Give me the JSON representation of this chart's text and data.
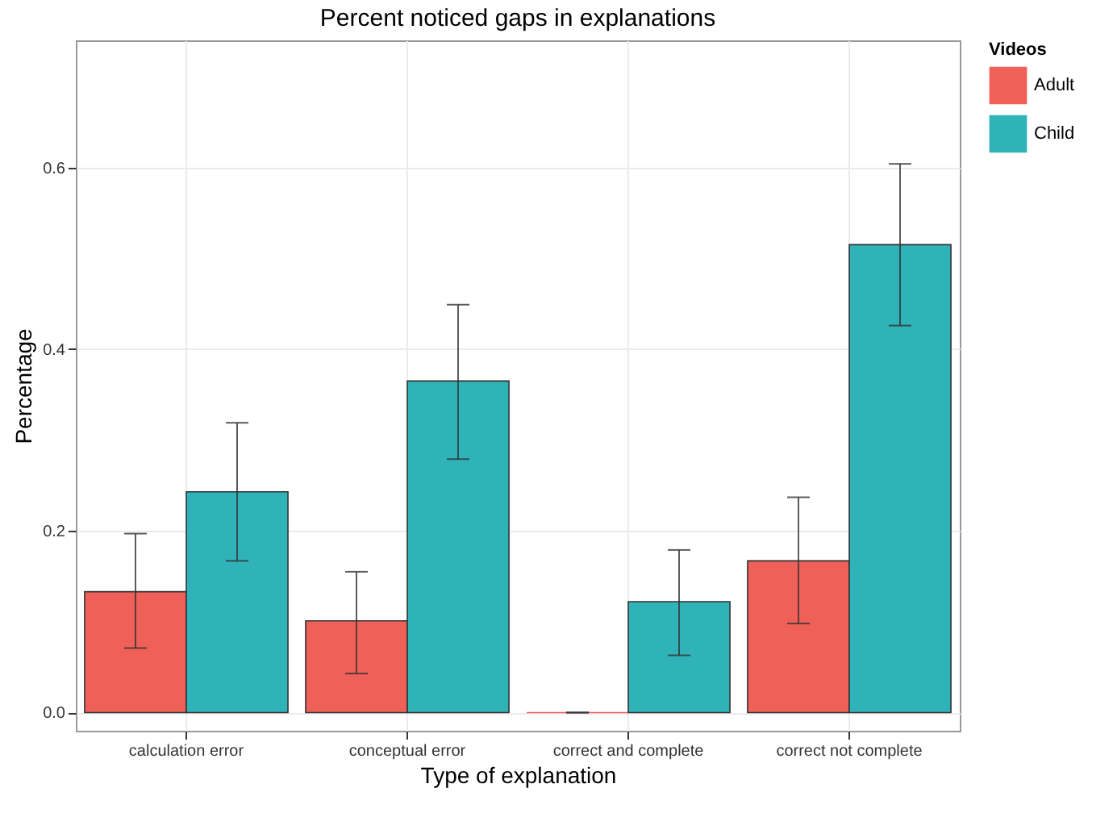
{
  "chart_data": {
    "type": "bar",
    "title": "Percent noticed gaps in explanations",
    "xlabel": "Type of explanation",
    "ylabel": "Percentage",
    "legend_title": "Videos",
    "categories": [
      "calculation error",
      "conceptual error",
      "correct and complete",
      "correct not complete"
    ],
    "series": [
      {
        "name": "Adult",
        "color": "#ef6158",
        "values": [
          0.133,
          0.101,
          0,
          0.167
        ],
        "errors": [
          [
            0.071,
            0.197
          ],
          [
            0.043,
            0.155
          ],
          [
            0,
            0
          ],
          [
            0.098,
            0.237
          ]
        ]
      },
      {
        "name": "Child",
        "color": "#2fb3b9",
        "values": [
          0.243,
          0.365,
          0.122,
          0.515
        ],
        "errors": [
          [
            0.167,
            0.319
          ],
          [
            0.279,
            0.449
          ],
          [
            0.063,
            0.179
          ],
          [
            0.426,
            0.604
          ]
        ]
      }
    ],
    "ylim": [
      -0.02,
      0.74
    ],
    "yticks": [
      {
        "value": 0,
        "label": "0.0"
      },
      {
        "value": 0.2,
        "label": "0.2"
      },
      {
        "value": 0.4,
        "label": "0.4"
      },
      {
        "value": 0.6,
        "label": "0.6"
      }
    ],
    "grid": true,
    "legend": "right"
  }
}
